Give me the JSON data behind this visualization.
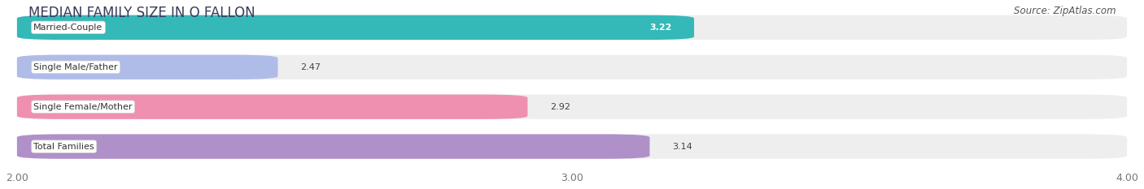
{
  "title": "MEDIAN FAMILY SIZE IN O FALLON",
  "source": "Source: ZipAtlas.com",
  "categories": [
    "Married-Couple",
    "Single Male/Father",
    "Single Female/Mother",
    "Total Families"
  ],
  "values": [
    3.22,
    2.47,
    2.92,
    3.14
  ],
  "bar_colors": [
    "#34b8b8",
    "#b0bce8",
    "#f090b0",
    "#b090c8"
  ],
  "bar_height": 0.62,
  "xlim_min": 2.0,
  "xlim_max": 4.0,
  "xticks": [
    2.0,
    3.0,
    4.0
  ],
  "xtick_labels": [
    "2.00",
    "3.00",
    "4.00"
  ],
  "background_color": "#ffffff",
  "bar_bg_color": "#eeeeee",
  "title_fontsize": 12,
  "label_fontsize": 8,
  "value_fontsize": 8,
  "source_fontsize": 8.5,
  "value_colors": [
    "#ffffff",
    "#555555",
    "#555555",
    "#555555"
  ]
}
